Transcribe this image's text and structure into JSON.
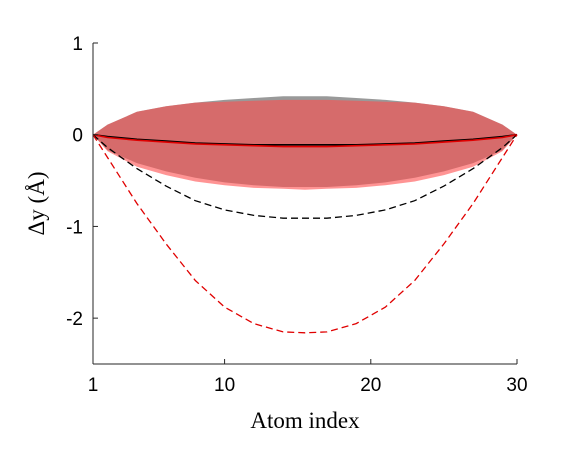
{
  "chart_data": {
    "type": "line",
    "xlabel": "Atom index",
    "ylabel": "Δy (Å)",
    "xlim": [
      1,
      30
    ],
    "ylim": [
      -2.5,
      1
    ],
    "xticks": [
      1,
      10,
      20,
      30
    ],
    "yticks": [
      1,
      0,
      -1,
      -2
    ],
    "ytick_labels": [
      "1",
      "0",
      "-1",
      "-2"
    ],
    "grid": false,
    "x": [
      1,
      2,
      4,
      6,
      8,
      10,
      12,
      14,
      15.5,
      17,
      19,
      21,
      23,
      25,
      27,
      29,
      30
    ],
    "bands": [
      {
        "color": "#7f7f7f",
        "opacity": 0.8,
        "upper": [
          0,
          0.11,
          0.25,
          0.31,
          0.35,
          0.38,
          0.4,
          0.42,
          0.42,
          0.42,
          0.4,
          0.38,
          0.35,
          0.31,
          0.25,
          0.11,
          0
        ],
        "lower": [
          0,
          -0.17,
          -0.31,
          -0.4,
          -0.47,
          -0.52,
          -0.55,
          -0.57,
          -0.57,
          -0.57,
          -0.55,
          -0.52,
          -0.47,
          -0.4,
          -0.31,
          -0.17,
          0
        ]
      },
      {
        "color": "#ff4d4d",
        "opacity": 0.6,
        "upper": [
          0,
          0.11,
          0.25,
          0.31,
          0.35,
          0.36,
          0.37,
          0.38,
          0.38,
          0.38,
          0.37,
          0.36,
          0.35,
          0.31,
          0.25,
          0.11,
          0
        ],
        "lower": [
          0,
          -0.18,
          -0.35,
          -0.44,
          -0.51,
          -0.55,
          -0.58,
          -0.59,
          -0.6,
          -0.59,
          -0.58,
          -0.55,
          -0.51,
          -0.44,
          -0.35,
          -0.18,
          0
        ]
      }
    ],
    "series": [
      {
        "color": "#000000",
        "dashed": false,
        "values": [
          0,
          -0.02,
          -0.05,
          -0.07,
          -0.09,
          -0.1,
          -0.11,
          -0.11,
          -0.11,
          -0.11,
          -0.11,
          -0.1,
          -0.09,
          -0.07,
          -0.05,
          -0.02,
          0
        ]
      },
      {
        "color": "#e00000",
        "dashed": false,
        "values": [
          0,
          -0.03,
          -0.06,
          -0.08,
          -0.1,
          -0.11,
          -0.12,
          -0.13,
          -0.13,
          -0.13,
          -0.12,
          -0.11,
          -0.1,
          -0.08,
          -0.06,
          -0.03,
          0
        ]
      },
      {
        "color": "#000000",
        "dashed": true,
        "values": [
          0,
          -0.14,
          -0.37,
          -0.56,
          -0.72,
          -0.82,
          -0.88,
          -0.91,
          -0.91,
          -0.91,
          -0.88,
          -0.82,
          -0.72,
          -0.56,
          -0.37,
          -0.14,
          0
        ]
      },
      {
        "color": "#e00000",
        "dashed": true,
        "values": [
          0,
          -0.25,
          -0.75,
          -1.19,
          -1.59,
          -1.88,
          -2.06,
          -2.15,
          -2.16,
          -2.15,
          -2.06,
          -1.88,
          -1.59,
          -1.19,
          -0.75,
          -0.25,
          0
        ]
      }
    ]
  }
}
